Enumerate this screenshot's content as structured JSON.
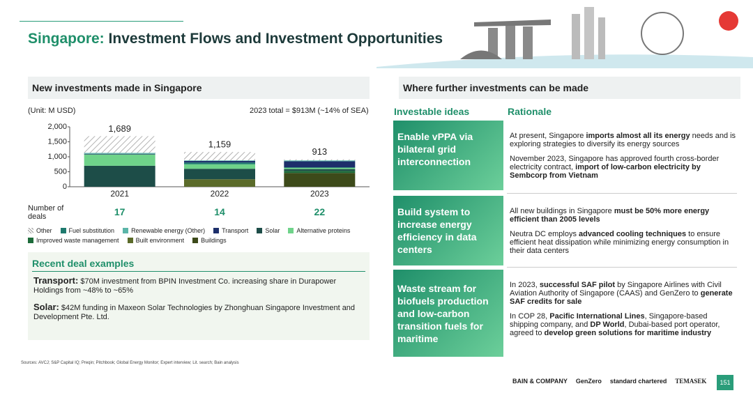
{
  "header": {
    "title_highlight": "Singapore:",
    "title": "Investment Flows and Investment Opportunities"
  },
  "left": {
    "heading": "New investments made in Singapore",
    "unit": "(Unit: M USD)",
    "total_note": "2023 total = $913M (~14% of SEA)",
    "deals_label": "Number of deals",
    "deals": [
      "17",
      "14",
      "22"
    ]
  },
  "chart_data": {
    "type": "stacked_bar",
    "categories": [
      "2021",
      "2022",
      "2023"
    ],
    "ylim": [
      0,
      2000
    ],
    "yticks": [
      0,
      500,
      {
        "value": 1000,
        "label": "1,000"
      },
      {
        "value": 1500,
        "label": "1,500"
      },
      {
        "value": 2000,
        "label": "2,000"
      }
    ],
    "totals": {
      "values": [
        1689,
        1159,
        913
      ],
      "value_labels": [
        "1,689",
        "1,159",
        "913"
      ]
    },
    "series": [
      {
        "name": "Other",
        "color": "#c8c8c8",
        "hatch": true,
        "values": [
          560,
          279,
          33
        ]
      },
      {
        "name": "Fuel substitution",
        "color": "#1f7a6e",
        "values": [
          0,
          60,
          20
        ]
      },
      {
        "name": "Renewable energy (Other)",
        "color": "#5bb5a8",
        "values": [
          30,
          20,
          30
        ]
      },
      {
        "name": "Transport",
        "color": "#1d2f6b",
        "values": [
          20,
          50,
          200
        ]
      },
      {
        "name": "Solar",
        "color": "#1d4d48",
        "values": [
          700,
          350,
          60
        ]
      },
      {
        "name": "Alternative proteins",
        "color": "#6fd38a",
        "values": [
          379,
          150,
          40
        ]
      },
      {
        "name": "Improved waste management",
        "color": "#1d6b3a",
        "values": [
          0,
          0,
          70
        ]
      },
      {
        "name": "Built environment",
        "color": "#5b6b2a",
        "values": [
          0,
          250,
          0
        ]
      },
      {
        "name": "Buildings",
        "color": "#3d4a1a",
        "values": [
          0,
          0,
          460
        ]
      }
    ]
  },
  "deals": {
    "title": "Recent deal examples",
    "items": [
      {
        "label": "Transport:",
        "text": "$70M investment from BPIN Investment Co. increasing share in Durapower Holdings from ~48% to ~65%"
      },
      {
        "label": "Solar:",
        "text": "$42M funding in Maxeon Solar Technologies by Zhonghuan Singapore Investment and Development Pte. Ltd."
      }
    ]
  },
  "right": {
    "heading": "Where further investments can be made",
    "col1": "Investable ideas",
    "col2": "Rationale",
    "rows": [
      {
        "idea": "Enable vPPA via bilateral grid interconnection",
        "paragraphs": [
          [
            {
              "t": "At present, Singapore "
            },
            {
              "t": "imports almost all its energy",
              "b": true
            },
            {
              "t": " needs and is exploring strategies to diversify its energy sources"
            }
          ],
          [
            {
              "t": "November 2023, Singapore has approved fourth cross-border electricity contract, "
            },
            {
              "t": "import of low-carbon electricity by Sembcorp from Vietnam",
              "b": true
            }
          ]
        ]
      },
      {
        "idea": "Build system to increase energy efficiency in data centers",
        "paragraphs": [
          [
            {
              "t": "All new buildings in Singapore "
            },
            {
              "t": "must be 50% more energy efficient than 2005 levels",
              "b": true
            }
          ],
          [
            {
              "t": "Neutra DC employs "
            },
            {
              "t": "advanced cooling techniques",
              "b": true
            },
            {
              "t": " to ensure efficient heat dissipation while minimizing energy consumption in their data centers"
            }
          ]
        ]
      },
      {
        "idea": "Waste stream for biofuels production and low-carbon transition fuels for maritime",
        "paragraphs": [
          [
            {
              "t": "In 2023, "
            },
            {
              "t": "successful SAF pilot",
              "b": true
            },
            {
              "t": " by Singapore Airlines with Civil Aviation Authority of Singapore (CAAS) and GenZero to "
            },
            {
              "t": "generate SAF credits for sale",
              "b": true
            }
          ],
          [
            {
              "t": "In COP 28, "
            },
            {
              "t": "Pacific International Lines",
              "b": true
            },
            {
              "t": ", Singapore-based shipping company, and "
            },
            {
              "t": "DP World",
              "b": true
            },
            {
              "t": ", Dubai-based port operator, agreed to "
            },
            {
              "t": "develop green solutions for maritime industry",
              "b": true
            }
          ]
        ]
      }
    ]
  },
  "footer": {
    "sources": "Sources: AVCJ; S&P Capital IQ; Preqin; Pitchbook; Global Energy Monitor; Expert interview; Lit. search; Bain analysis",
    "logos": [
      "BAIN & COMPANY",
      "GenZero",
      "standard chartered",
      "TEMASEK"
    ],
    "page": "151"
  }
}
